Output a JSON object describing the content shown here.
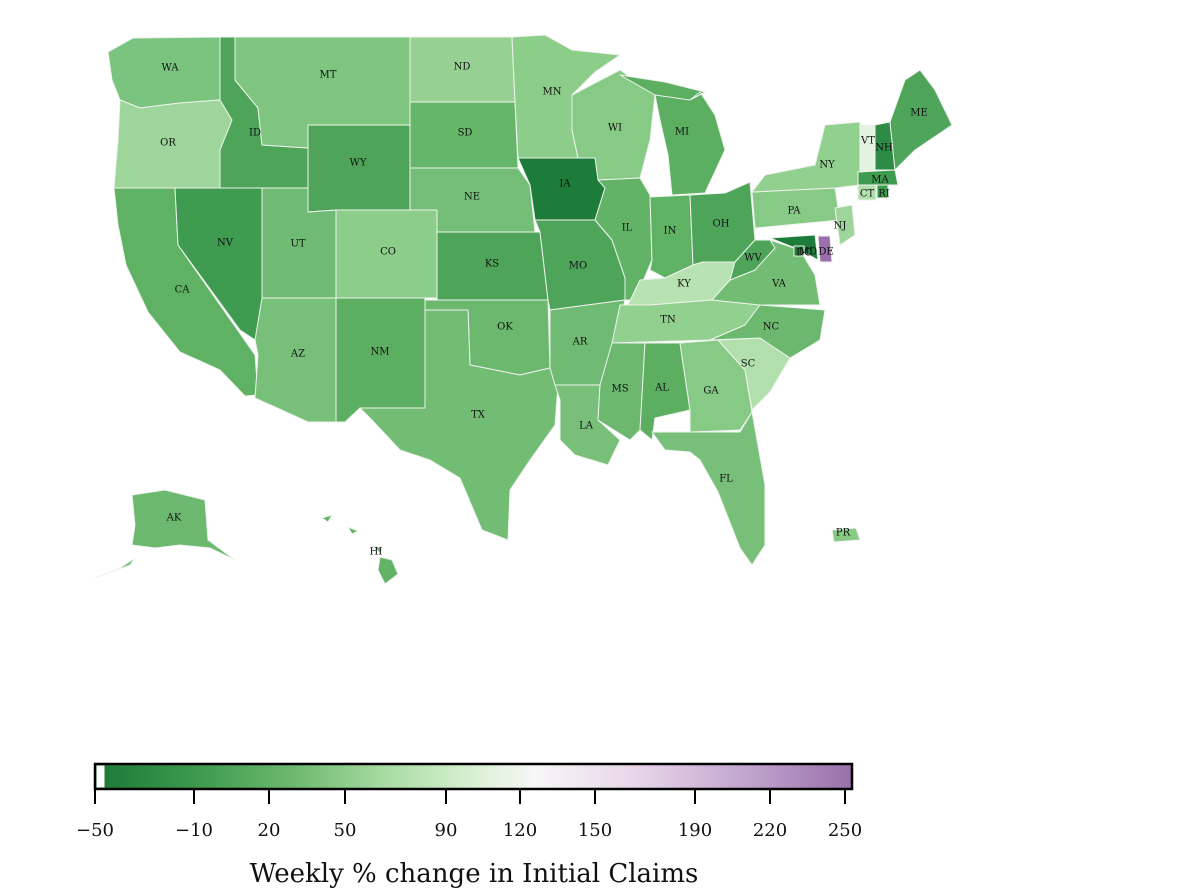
{
  "map": {
    "title": "",
    "colorbar": {
      "label": "Weekly % change in Initial Claims",
      "ticks": [
        "−50",
        "−10",
        "20",
        "50",
        "90",
        "120",
        "150",
        "190",
        "220",
        "250"
      ],
      "min": -50,
      "max": 250,
      "colors": {
        "low": "#1b7837",
        "mid": "#f7f7f7",
        "high": "#9970ab"
      }
    },
    "states": [
      {
        "abbr": "WA",
        "fill": "#7bc47f"
      },
      {
        "abbr": "OR",
        "fill": "#9dd59a"
      },
      {
        "abbr": "CA",
        "fill": "#5fb263"
      },
      {
        "abbr": "NV",
        "fill": "#3e9b4f"
      },
      {
        "abbr": "ID",
        "fill": "#4ea55a"
      },
      {
        "abbr": "MT",
        "fill": "#7ec57f"
      },
      {
        "abbr": "WY",
        "fill": "#4ea55a"
      },
      {
        "abbr": "UT",
        "fill": "#70bb73"
      },
      {
        "abbr": "AZ",
        "fill": "#78c07a"
      },
      {
        "abbr": "CO",
        "fill": "#8ccd8a"
      },
      {
        "abbr": "NM",
        "fill": "#5caf61"
      },
      {
        "abbr": "ND",
        "fill": "#96d193"
      },
      {
        "abbr": "SD",
        "fill": "#66b669"
      },
      {
        "abbr": "NE",
        "fill": "#74bd76"
      },
      {
        "abbr": "KS",
        "fill": "#4ea55a"
      },
      {
        "abbr": "OK",
        "fill": "#6cb86e"
      },
      {
        "abbr": "TX",
        "fill": "#72bc74"
      },
      {
        "abbr": "MN",
        "fill": "#8ccd8a"
      },
      {
        "abbr": "IA",
        "fill": "#1e7c3a"
      },
      {
        "abbr": "MO",
        "fill": "#4ea55a"
      },
      {
        "abbr": "AR",
        "fill": "#70bb73"
      },
      {
        "abbr": "LA",
        "fill": "#78c07a"
      },
      {
        "abbr": "WI",
        "fill": "#86ca85"
      },
      {
        "abbr": "IL",
        "fill": "#62b366"
      },
      {
        "abbr": "MI",
        "fill": "#5caf61"
      },
      {
        "abbr": "IN",
        "fill": "#5fb263"
      },
      {
        "abbr": "OH",
        "fill": "#4ea55a"
      },
      {
        "abbr": "KY",
        "fill": "#b7e2b1"
      },
      {
        "abbr": "TN",
        "fill": "#92d08f"
      },
      {
        "abbr": "MS",
        "fill": "#6cb86e"
      },
      {
        "abbr": "AL",
        "fill": "#5caf61"
      },
      {
        "abbr": "GA",
        "fill": "#86ca85"
      },
      {
        "abbr": "FL",
        "fill": "#78c07a"
      },
      {
        "abbr": "SC",
        "fill": "#b2e0ad"
      },
      {
        "abbr": "NC",
        "fill": "#6cb86e"
      },
      {
        "abbr": "VA",
        "fill": "#72bc74"
      },
      {
        "abbr": "WV",
        "fill": "#4ea55a"
      },
      {
        "abbr": "MD",
        "fill": "#1e7c3a"
      },
      {
        "abbr": "DE",
        "fill": "#9970ab"
      },
      {
        "abbr": "DC",
        "fill": "#1e7c3a"
      },
      {
        "abbr": "PA",
        "fill": "#86ca85"
      },
      {
        "abbr": "NJ",
        "fill": "#9dd59a"
      },
      {
        "abbr": "NY",
        "fill": "#92d08f"
      },
      {
        "abbr": "CT",
        "fill": "#b2e0ad"
      },
      {
        "abbr": "RI",
        "fill": "#3e9b4f"
      },
      {
        "abbr": "MA",
        "fill": "#3e9b4f"
      },
      {
        "abbr": "VT",
        "fill": "#e4f3df"
      },
      {
        "abbr": "NH",
        "fill": "#2e8b45"
      },
      {
        "abbr": "ME",
        "fill": "#4ea55a"
      },
      {
        "abbr": "AK",
        "fill": "#6cb86e"
      },
      {
        "abbr": "HI",
        "fill": "#62b366"
      },
      {
        "abbr": "PR",
        "fill": "#86ca85"
      }
    ]
  }
}
